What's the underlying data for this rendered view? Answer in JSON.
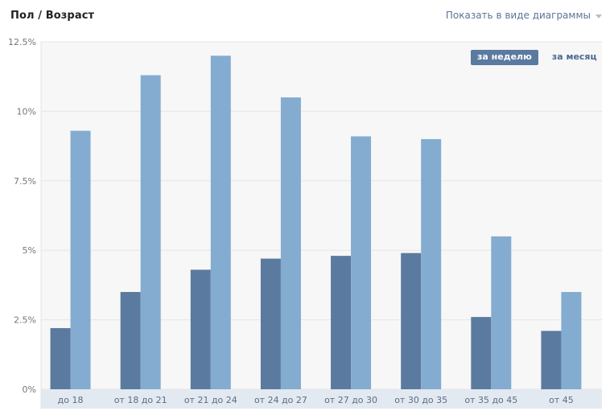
{
  "header": {
    "title": "Пол / Возраст",
    "view_selector_label": "Показать в виде диаграммы"
  },
  "tabs": [
    {
      "label": "за неделю",
      "active": true
    },
    {
      "label": "за месяц",
      "active": false
    }
  ],
  "colors": {
    "series_dark": "#5b7a9f",
    "series_light": "#84acd0",
    "plot_background": "#f7f7f7",
    "grid": "#e6e6e6",
    "axis_strip": "#e2e9f1"
  },
  "chart_data": {
    "type": "bar",
    "categories": [
      "до 18",
      "от 18 до 21",
      "от 21 до 24",
      "от 24 до 27",
      "от 27 до 30",
      "от 30 до 35",
      "от 35 до 45",
      "от 45"
    ],
    "series": [
      {
        "values": [
          2.2,
          3.5,
          4.3,
          4.7,
          4.8,
          4.9,
          2.6,
          2.1
        ]
      },
      {
        "values": [
          9.3,
          11.3,
          12.0,
          10.5,
          9.1,
          9.0,
          5.5,
          3.5
        ]
      }
    ],
    "ylim": [
      0,
      12.5
    ],
    "yticks": [
      0,
      2.5,
      5,
      7.5,
      10,
      12.5
    ],
    "ytick_labels": [
      "0%",
      "2.5%",
      "5%",
      "7.5%",
      "10%",
      "12.5%"
    ],
    "grid": true,
    "xlabel": "",
    "ylabel": ""
  }
}
